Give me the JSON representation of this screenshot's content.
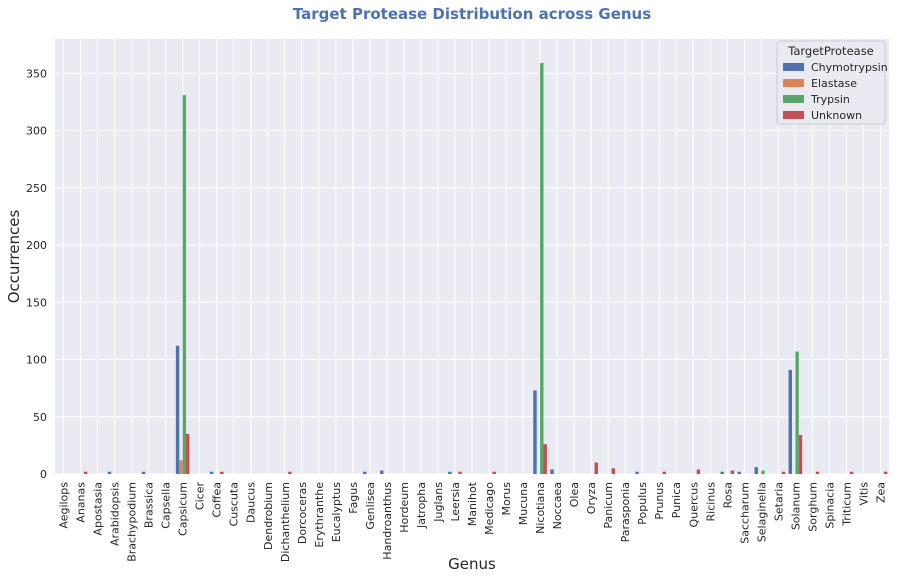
{
  "chart_data": {
    "type": "bar",
    "title": "Target Protease Distribution across Genus",
    "xlabel": "Genus",
    "ylabel": "Occurrences",
    "ylim": [
      0,
      380
    ],
    "yticks": [
      0,
      50,
      100,
      150,
      200,
      250,
      300,
      350
    ],
    "grid": true,
    "legend_title": "TargetProtease",
    "legend_position": "top-right",
    "categories": [
      "Aegilops",
      "Ananas",
      "Apostasia",
      "Arabidopsis",
      "Brachypodium",
      "Brassica",
      "Capsella",
      "Capsicum",
      "Cicer",
      "Coffea",
      "Cuscuta",
      "Daucus",
      "Dendrobium",
      "Dichanthelium",
      "Dorcoceras",
      "Erythranthe",
      "Eucalyptus",
      "Fagus",
      "Genlisea",
      "Handroanthus",
      "Hordeum",
      "Jatropha",
      "Juglans",
      "Leersia",
      "Manihot",
      "Medicago",
      "Morus",
      "Mucuna",
      "Nicotiana",
      "Noccaea",
      "Olea",
      "Oryza",
      "Panicum",
      "Parasponia",
      "Populus",
      "Prunus",
      "Punica",
      "Quercus",
      "Ricinus",
      "Rosa",
      "Saccharum",
      "Selaginella",
      "Setaria",
      "Solanum",
      "Sorghum",
      "Spinacia",
      "Triticum",
      "Vitis",
      "Zea"
    ],
    "series": [
      {
        "name": "Chymotrypsin",
        "color": "#4c72b0",
        "values": [
          0,
          0,
          0,
          2,
          0,
          2,
          0,
          112,
          0,
          2,
          0,
          0,
          0,
          0,
          0,
          0,
          0,
          0,
          2,
          3,
          0,
          0,
          0,
          2,
          0,
          0,
          0,
          0,
          73,
          4,
          0,
          0,
          0,
          0,
          2,
          0,
          0,
          0,
          0,
          2,
          2,
          6,
          0,
          91,
          0,
          0,
          0,
          0,
          0
        ]
      },
      {
        "name": "Elastase",
        "color": "#dd8452",
        "values": [
          0,
          0,
          0,
          0,
          0,
          0,
          0,
          12,
          0,
          0,
          0,
          0,
          0,
          0,
          0,
          0,
          0,
          0,
          0,
          0,
          0,
          0,
          0,
          0,
          0,
          0,
          0,
          0,
          0,
          0,
          0,
          0,
          0,
          0,
          0,
          0,
          0,
          0,
          0,
          0,
          0,
          0,
          0,
          0,
          0,
          0,
          0,
          0,
          0
        ]
      },
      {
        "name": "Trypsin",
        "color": "#55a868",
        "values": [
          0,
          0,
          0,
          0,
          0,
          0,
          0,
          331,
          0,
          0,
          0,
          0,
          0,
          0,
          0,
          0,
          0,
          0,
          0,
          0,
          0,
          0,
          0,
          0,
          0,
          0,
          0,
          0,
          359,
          0,
          0,
          0,
          0,
          0,
          0,
          0,
          0,
          0,
          0,
          0,
          0,
          3,
          0,
          107,
          0,
          0,
          0,
          0,
          0
        ]
      },
      {
        "name": "Unknown",
        "color": "#c44e52",
        "values": [
          0,
          2,
          0,
          0,
          0,
          0,
          0,
          35,
          0,
          2,
          0,
          0,
          0,
          2,
          0,
          0,
          0,
          0,
          0,
          0,
          0,
          0,
          0,
          2,
          0,
          2,
          0,
          0,
          26,
          0,
          0,
          10,
          5,
          0,
          0,
          2,
          0,
          4,
          0,
          3,
          0,
          0,
          2,
          34,
          2,
          0,
          2,
          0,
          2
        ]
      }
    ]
  }
}
